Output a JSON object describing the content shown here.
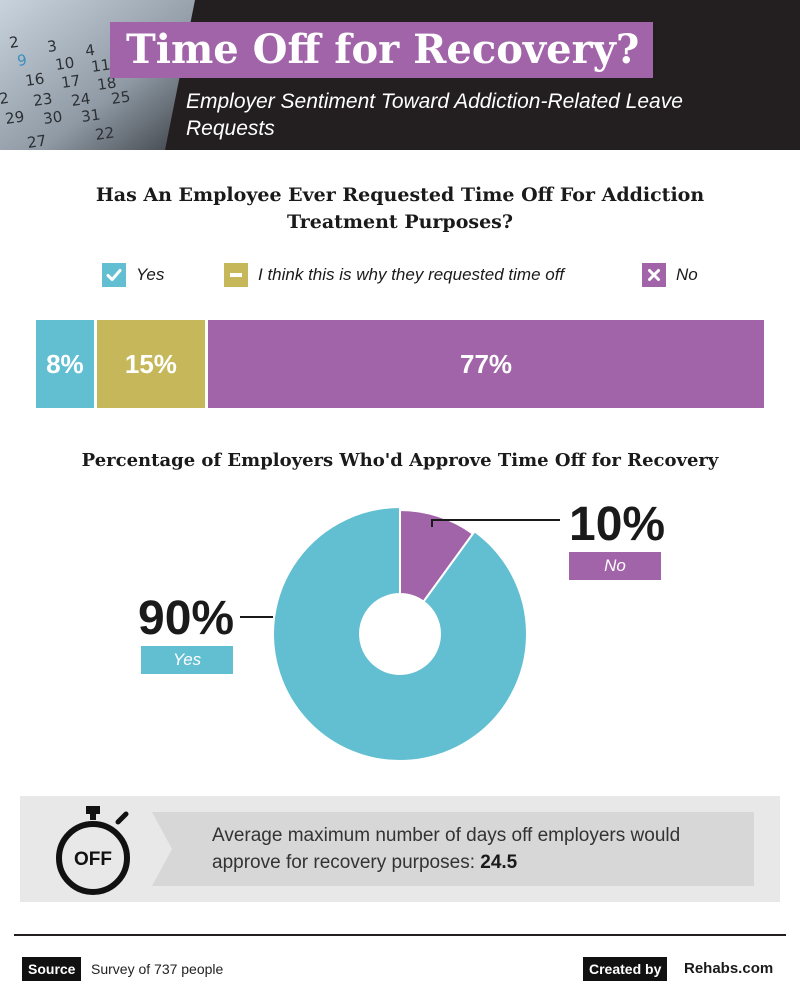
{
  "header": {
    "title": "Time Off for Recovery?",
    "subtitle": "Employer Sentiment Toward Addiction-Related Leave Requests",
    "calendar_numbers": [
      "2",
      "3",
      "4",
      "9",
      "10",
      "11",
      "16",
      "17",
      "18",
      "2",
      "23",
      "24",
      "25",
      "29",
      "30",
      "31",
      "22",
      "27"
    ]
  },
  "colors": {
    "header_bg": "#231f20",
    "purple": "#a164a8",
    "blue": "#62bfd2",
    "olive": "#c6b85a",
    "stat_bg": "#e8e8e8"
  },
  "legend": {
    "yes": "Yes",
    "maybe": "I think this is why they requested time off",
    "no": "No",
    "icons": [
      "check-icon",
      "minus-icon",
      "x-icon"
    ]
  },
  "chart_data": [
    {
      "type": "bar",
      "orientation": "horizontal-stacked",
      "title": "Has An Employee Ever Requested Time Off For Addiction Treatment Purposes?",
      "categories": [
        "Yes",
        "I think this is why they requested time off",
        "No"
      ],
      "values": [
        8,
        15,
        77
      ],
      "labels": [
        "8%",
        "15%",
        "77%"
      ],
      "unit": "%"
    },
    {
      "type": "pie",
      "variant": "donut",
      "title": "Percentage of Employers Who'd Approve Time Off for Recovery",
      "categories": [
        "No",
        "Yes"
      ],
      "values": [
        10,
        90
      ],
      "labels": [
        "10%",
        "90%"
      ],
      "tags": [
        "No",
        "Yes"
      ],
      "unit": "%"
    }
  ],
  "stat": {
    "icon": "stopwatch-icon",
    "icon_text": "OFF",
    "text": "Average maximum number of days off employers would approve for recovery purposes:",
    "value": "24.5"
  },
  "footer": {
    "source_label": "Source",
    "source_text": "Survey of 737 people",
    "created_by_label": "Created by",
    "brand": "Rehabs.com"
  }
}
